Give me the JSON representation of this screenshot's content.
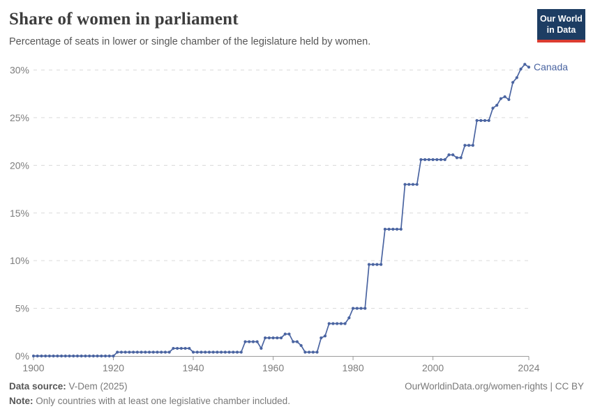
{
  "header": {
    "title": "Share of women in parliament",
    "subtitle": "Percentage of seats in lower or single chamber of the legislature held by women.",
    "logo": {
      "line1": "Our World",
      "line2": "in Data"
    }
  },
  "chart_data": {
    "type": "line",
    "title": "Share of women in parliament",
    "xlabel": "",
    "ylabel": "",
    "x_start": 1900,
    "x_step": 1,
    "xlim": [
      1900,
      2024
    ],
    "ylim": [
      0,
      30
    ],
    "x_ticks": [
      1900,
      1920,
      1940,
      1960,
      1980,
      2000,
      2024
    ],
    "y_ticks": [
      0,
      5,
      10,
      15,
      20,
      25,
      30
    ],
    "y_tick_labels": [
      "0%",
      "5%",
      "10%",
      "15%",
      "20%",
      "25%",
      "30%"
    ],
    "grid": "horizontal-dashed",
    "legend": "end-of-line-label",
    "line_color": "#4a64a1",
    "axis_color": "#9a9a9a",
    "grid_color": "#dadada",
    "tick_label_color": "#7d7d7d",
    "series": [
      {
        "name": "Canada",
        "values": [
          0,
          0,
          0,
          0,
          0,
          0,
          0,
          0,
          0,
          0,
          0,
          0,
          0,
          0,
          0,
          0,
          0,
          0,
          0,
          0,
          0,
          0.4,
          0.4,
          0.4,
          0.4,
          0.4,
          0.4,
          0.4,
          0.4,
          0.4,
          0.4,
          0.4,
          0.4,
          0.4,
          0.4,
          0.8,
          0.8,
          0.8,
          0.8,
          0.8,
          0.4,
          0.4,
          0.4,
          0.4,
          0.4,
          0.4,
          0.4,
          0.4,
          0.4,
          0.4,
          0.4,
          0.4,
          0.4,
          1.5,
          1.5,
          1.5,
          1.5,
          0.8,
          1.9,
          1.9,
          1.9,
          1.9,
          1.9,
          2.3,
          2.3,
          1.5,
          1.5,
          1.1,
          0.4,
          0.4,
          0.4,
          0.4,
          1.9,
          2.1,
          3.4,
          3.4,
          3.4,
          3.4,
          3.4,
          4.0,
          5.0,
          5.0,
          5.0,
          5.0,
          9.6,
          9.6,
          9.6,
          9.6,
          13.3,
          13.3,
          13.3,
          13.3,
          13.3,
          18.0,
          18.0,
          18.0,
          18.0,
          20.6,
          20.6,
          20.6,
          20.6,
          20.6,
          20.6,
          20.6,
          21.1,
          21.1,
          20.8,
          20.8,
          22.1,
          22.1,
          22.1,
          24.7,
          24.7,
          24.7,
          24.7,
          26.0,
          26.3,
          27.0,
          27.2,
          26.9,
          28.7,
          29.2,
          30.1,
          30.6,
          30.3
        ]
      }
    ]
  },
  "footer": {
    "source_label": "Data source:",
    "source_value": " V-Dem (2025)",
    "note_label": "Note:",
    "note_value": " Only countries with at least one legislative chamber included.",
    "link": "OurWorldinData.org/women-rights | CC BY"
  }
}
